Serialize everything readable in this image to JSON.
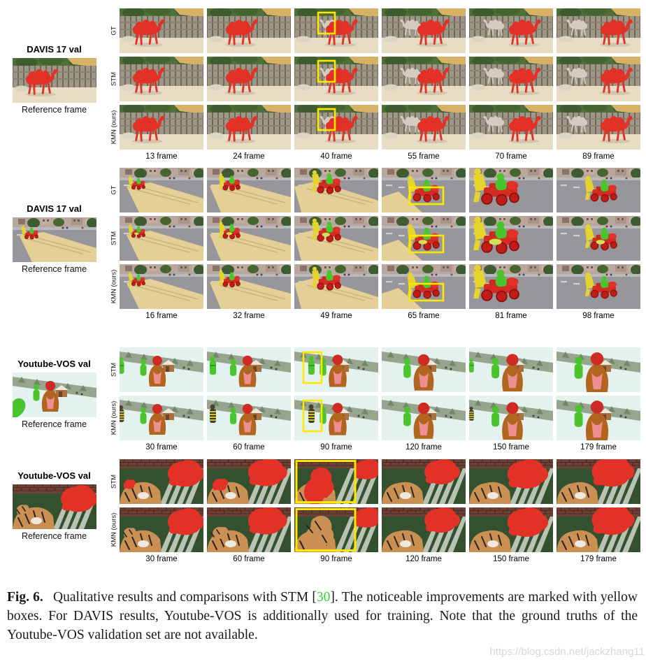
{
  "figure": {
    "groups": [
      {
        "id": "davis-camel",
        "title": "DAVIS 17 val",
        "reference_caption": "Reference frame",
        "scene": "camel",
        "rows": [
          "GT",
          "STM",
          "KMN (ours)"
        ],
        "frames": [
          "13 frame",
          "24 frame",
          "40 frame",
          "55 frame",
          "70 frame",
          "89 frame"
        ],
        "highlight_col": 2
      },
      {
        "id": "davis-soapbox",
        "title": "DAVIS 17 val",
        "reference_caption": "Reference frame",
        "scene": "soapbox",
        "rows": [
          "GT",
          "STM",
          "KMN (ours)"
        ],
        "frames": [
          "16 frame",
          "32 frame",
          "49 frame",
          "65 frame",
          "81 frame",
          "98 frame"
        ],
        "highlight_col": 3
      },
      {
        "id": "youtubevos-ski",
        "title": "Youtube-VOS val",
        "reference_caption": "Reference frame",
        "scene": "snow",
        "rows": [
          "STM",
          "KMN (ours)"
        ],
        "frames": [
          "30 frame",
          "60 frame",
          "90 frame",
          "120 frame",
          "150 frame",
          "179 frame"
        ],
        "highlight_col": 2
      },
      {
        "id": "youtubevos-tiger",
        "title": "Youtube-VOS val",
        "reference_caption": "Reference frame",
        "scene": "tiger",
        "rows": [
          "STM",
          "KMN (ours)"
        ],
        "frames": [
          "30 frame",
          "60 frame",
          "90 frame",
          "120 frame",
          "150 frame",
          "179 frame"
        ],
        "highlight_col": 2
      }
    ],
    "caption": {
      "label": "Fig. 6.",
      "pre": " Qualitative results and comparisons with STM [",
      "cite": "30",
      "post": "]. The noticeable improvements are marked with yellow boxes. For DAVIS results, Youtube-VOS is additionally used for training. Note that the ground truths of the Youtube-VOS validation set are not available."
    },
    "watermark": "https://blog.csdn.net/jackzhang11",
    "colors": {
      "mask_red": "#e23127",
      "mask_green": "#4cc42e",
      "mask_yellow": "#e6d42e",
      "highlight_box": "#ffe800",
      "citation_green": "#2fd42f",
      "watermark_gray": "#d8d8d8"
    }
  }
}
